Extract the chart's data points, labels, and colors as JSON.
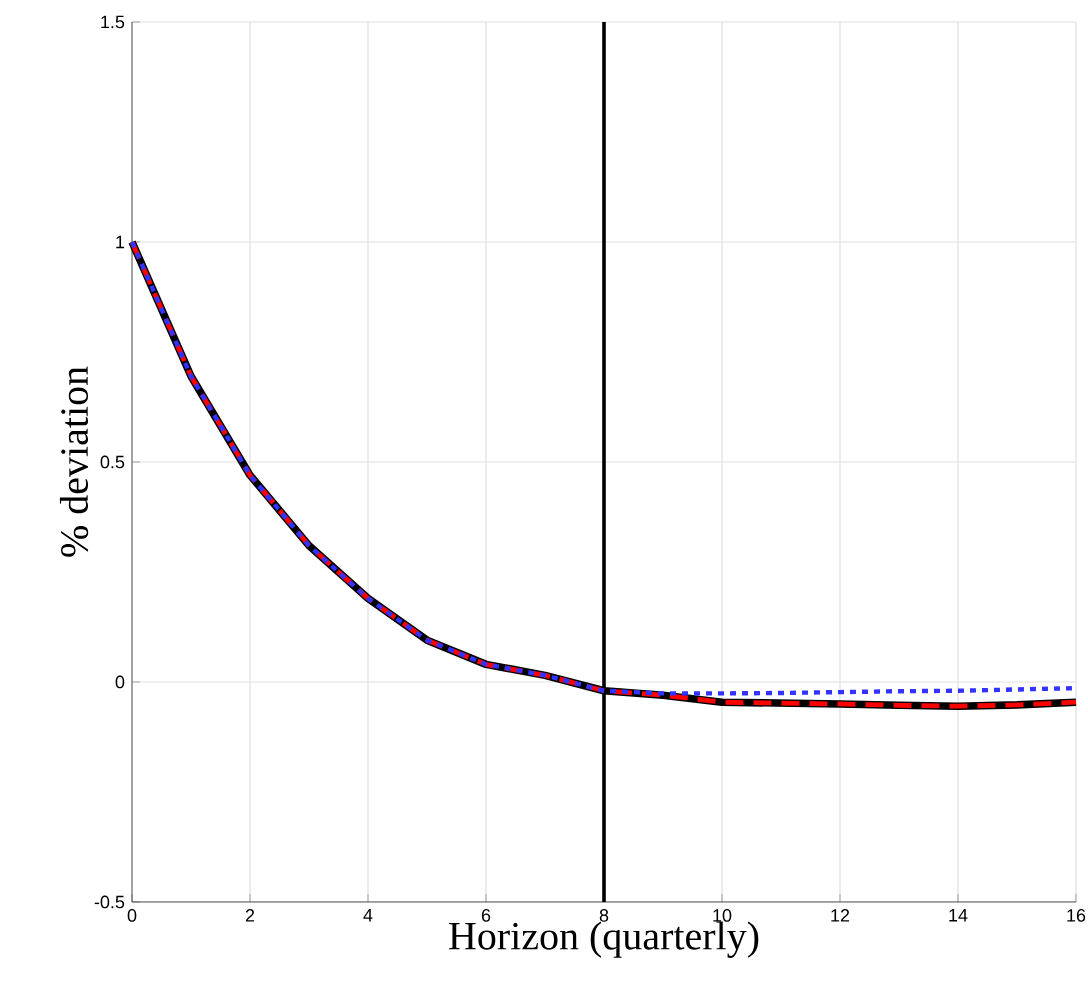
{
  "chart_data": {
    "type": "line",
    "xlabel": "Horizon (quarterly)",
    "ylabel": "% deviation",
    "x": [
      0,
      1,
      2,
      3,
      4,
      5,
      6,
      7,
      8,
      9,
      10,
      11,
      12,
      13,
      14,
      15,
      16
    ],
    "series": [
      {
        "color": "#000000",
        "line_style": "solid",
        "values": [
          1,
          0.695,
          0.47,
          0.31,
          0.19,
          0.095,
          0.04,
          0.015,
          -0.02,
          -0.03,
          -0.046,
          -0.048,
          -0.05,
          -0.053,
          -0.055,
          -0.052,
          -0.046
        ]
      },
      {
        "color": "#ff0000",
        "line_style": "dashed",
        "values": [
          1,
          0.695,
          0.47,
          0.31,
          0.19,
          0.095,
          0.04,
          0.015,
          -0.02,
          -0.03,
          -0.046,
          -0.048,
          -0.05,
          -0.053,
          -0.055,
          -0.052,
          -0.046
        ]
      },
      {
        "color": "#3333ff",
        "line_style": "dotted",
        "values": [
          1,
          0.695,
          0.47,
          0.31,
          0.19,
          0.095,
          0.04,
          0.015,
          -0.02,
          -0.026,
          -0.026,
          -0.025,
          -0.023,
          -0.021,
          -0.02,
          -0.017,
          -0.014
        ]
      }
    ],
    "xlim": [
      0,
      16
    ],
    "xticks": [
      0,
      2,
      4,
      6,
      8,
      10,
      12,
      14,
      16
    ],
    "ylim": [
      -0.5,
      1.5
    ],
    "yticks": [
      -0.5,
      0,
      0.5,
      1,
      1.5
    ],
    "grid": true,
    "marker": "none",
    "ref_lines": [
      {
        "axis": "x",
        "value": 8,
        "color": "#000000",
        "line_style": "solid"
      }
    ]
  }
}
